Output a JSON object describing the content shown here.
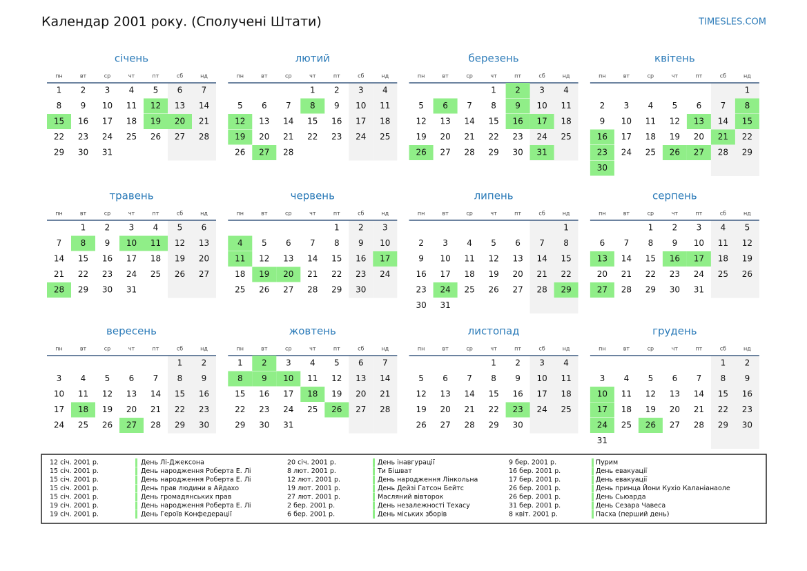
{
  "header": {
    "title": "Календар 2001 року. (Сполучені Штати)",
    "site": "TIMESLES.COM"
  },
  "weekdays": [
    "пн",
    "вт",
    "ср",
    "чт",
    "пт",
    "сб",
    "нд"
  ],
  "highlight_color": "#90ee88",
  "months": [
    {
      "name": "січень",
      "weeks": [
        [
          1,
          2,
          3,
          4,
          5,
          6,
          7
        ],
        [
          8,
          9,
          10,
          11,
          12,
          13,
          14
        ],
        [
          15,
          16,
          17,
          18,
          19,
          20,
          21
        ],
        [
          22,
          23,
          24,
          25,
          26,
          27,
          28
        ],
        [
          29,
          30,
          31
        ]
      ],
      "highlight": [
        12,
        15,
        19,
        20
      ]
    },
    {
      "name": "лютий",
      "weeks": [
        [
          null,
          null,
          null,
          1,
          2,
          3,
          4
        ],
        [
          5,
          6,
          7,
          8,
          9,
          10,
          11
        ],
        [
          12,
          13,
          14,
          15,
          16,
          17,
          18
        ],
        [
          19,
          20,
          21,
          22,
          23,
          24,
          25
        ],
        [
          26,
          27,
          28
        ]
      ],
      "highlight": [
        8,
        12,
        19,
        27
      ]
    },
    {
      "name": "березень",
      "weeks": [
        [
          null,
          null,
          null,
          1,
          2,
          3,
          4
        ],
        [
          5,
          6,
          7,
          8,
          9,
          10,
          11
        ],
        [
          12,
          13,
          14,
          15,
          16,
          17,
          18
        ],
        [
          19,
          20,
          21,
          22,
          23,
          24,
          25
        ],
        [
          26,
          27,
          28,
          29,
          30,
          31
        ]
      ],
      "highlight": [
        2,
        6,
        9,
        16,
        17,
        26,
        31
      ]
    },
    {
      "name": "квітень",
      "weeks": [
        [
          null,
          null,
          null,
          null,
          null,
          null,
          1
        ],
        [
          2,
          3,
          4,
          5,
          6,
          7,
          8
        ],
        [
          9,
          10,
          11,
          12,
          13,
          14,
          15
        ],
        [
          16,
          17,
          18,
          19,
          20,
          21,
          22
        ],
        [
          23,
          24,
          25,
          26,
          27,
          28,
          29
        ],
        [
          30
        ]
      ],
      "highlight": [
        8,
        13,
        15,
        16,
        21,
        23,
        26,
        27,
        30
      ]
    },
    {
      "name": "травень",
      "weeks": [
        [
          null,
          1,
          2,
          3,
          4,
          5,
          6
        ],
        [
          7,
          8,
          9,
          10,
          11,
          12,
          13
        ],
        [
          14,
          15,
          16,
          17,
          18,
          19,
          20
        ],
        [
          21,
          22,
          23,
          24,
          25,
          26,
          27
        ],
        [
          28,
          29,
          30,
          31
        ]
      ],
      "highlight": [
        8,
        10,
        11,
        28
      ]
    },
    {
      "name": "червень",
      "weeks": [
        [
          null,
          null,
          null,
          null,
          1,
          2,
          3
        ],
        [
          4,
          5,
          6,
          7,
          8,
          9,
          10
        ],
        [
          11,
          12,
          13,
          14,
          15,
          16,
          17
        ],
        [
          18,
          19,
          20,
          21,
          22,
          23,
          24
        ],
        [
          25,
          26,
          27,
          28,
          29,
          30
        ]
      ],
      "highlight": [
        4,
        11,
        17,
        19,
        20
      ]
    },
    {
      "name": "липень",
      "weeks": [
        [
          null,
          null,
          null,
          null,
          null,
          null,
          1
        ],
        [
          2,
          3,
          4,
          5,
          6,
          7,
          8
        ],
        [
          9,
          10,
          11,
          12,
          13,
          14,
          15
        ],
        [
          16,
          17,
          18,
          19,
          20,
          21,
          22
        ],
        [
          23,
          24,
          25,
          26,
          27,
          28,
          29
        ],
        [
          30,
          31
        ]
      ],
      "highlight": [
        24,
        29
      ]
    },
    {
      "name": "серпень",
      "weeks": [
        [
          null,
          null,
          1,
          2,
          3,
          4,
          5
        ],
        [
          6,
          7,
          8,
          9,
          10,
          11,
          12
        ],
        [
          13,
          14,
          15,
          16,
          17,
          18,
          19
        ],
        [
          20,
          21,
          22,
          23,
          24,
          25,
          26
        ],
        [
          27,
          28,
          29,
          30,
          31
        ]
      ],
      "highlight": [
        13,
        16,
        17,
        27
      ]
    },
    {
      "name": "вересень",
      "weeks": [
        [
          null,
          null,
          null,
          null,
          null,
          1,
          2
        ],
        [
          3,
          4,
          5,
          6,
          7,
          8,
          9
        ],
        [
          10,
          11,
          12,
          13,
          14,
          15,
          16
        ],
        [
          17,
          18,
          19,
          20,
          21,
          22,
          23
        ],
        [
          24,
          25,
          26,
          27,
          28,
          29,
          30
        ]
      ],
      "highlight": [
        18,
        27
      ]
    },
    {
      "name": "жовтень",
      "weeks": [
        [
          1,
          2,
          3,
          4,
          5,
          6,
          7
        ],
        [
          8,
          9,
          10,
          11,
          12,
          13,
          14
        ],
        [
          15,
          16,
          17,
          18,
          19,
          20,
          21
        ],
        [
          22,
          23,
          24,
          25,
          26,
          27,
          28
        ],
        [
          29,
          30,
          31
        ]
      ],
      "highlight": [
        2,
        8,
        9,
        10,
        18,
        26
      ]
    },
    {
      "name": "листопад",
      "weeks": [
        [
          null,
          null,
          null,
          1,
          2,
          3,
          4
        ],
        [
          5,
          6,
          7,
          8,
          9,
          10,
          11
        ],
        [
          12,
          13,
          14,
          15,
          16,
          17,
          18
        ],
        [
          19,
          20,
          21,
          22,
          23,
          24,
          25
        ],
        [
          26,
          27,
          28,
          29,
          30
        ]
      ],
      "highlight": [
        23
      ]
    },
    {
      "name": "грудень",
      "weeks": [
        [
          null,
          null,
          null,
          null,
          null,
          1,
          2
        ],
        [
          3,
          4,
          5,
          6,
          7,
          8,
          9
        ],
        [
          10,
          11,
          12,
          13,
          14,
          15,
          16
        ],
        [
          17,
          18,
          19,
          20,
          21,
          22,
          23
        ],
        [
          24,
          25,
          26,
          27,
          28,
          29,
          30
        ],
        [
          31
        ]
      ],
      "highlight": [
        10,
        17,
        24,
        26
      ]
    }
  ],
  "holidays": [
    {
      "date": "12 січ. 2001 р.",
      "name": "День Лі-Джексона"
    },
    {
      "date": "15 січ. 2001 р.",
      "name": "День народження Роберта Е. Лі"
    },
    {
      "date": "15 січ. 2001 р.",
      "name": "День народження Роберта Е. Лі"
    },
    {
      "date": "15 січ. 2001 р.",
      "name": "День прав людини в Айдахо"
    },
    {
      "date": "15 січ. 2001 р.",
      "name": "День громадянських прав"
    },
    {
      "date": "19 січ. 2001 р.",
      "name": "День народження Роберта Е. Лі"
    },
    {
      "date": "19 січ. 2001 р.",
      "name": "День Героїв Конфедерації"
    },
    {
      "date": "20 січ. 2001 р.",
      "name": "День інавгурації"
    },
    {
      "date": "8 лют. 2001 р.",
      "name": "Ти Бішват"
    },
    {
      "date": "12 лют. 2001 р.",
      "name": "День народження Лінкольна"
    },
    {
      "date": "19 лют. 2001 р.",
      "name": "День Дейзі Гатсон Бейтс"
    },
    {
      "date": "27 лют. 2001 р.",
      "name": "Масляний вівторок"
    },
    {
      "date": "2 бер. 2001 р.",
      "name": "День незалежності Техасу"
    },
    {
      "date": "6 бер. 2001 р.",
      "name": "День міських зборів"
    },
    {
      "date": "9 бер. 2001 р.",
      "name": "Пурим"
    },
    {
      "date": "16 бер. 2001 р.",
      "name": "День евакуації"
    },
    {
      "date": "17 бер. 2001 р.",
      "name": "День евакуації"
    },
    {
      "date": "26 бер. 2001 р.",
      "name": "День принца Йони Кухіо Каланіанаоле"
    },
    {
      "date": "26 бер. 2001 р.",
      "name": "День Сьюарда"
    },
    {
      "date": "31 бер. 2001 р.",
      "name": "День Сезара Чавеса"
    },
    {
      "date": "8 квіт. 2001 р.",
      "name": "Пасха (перший день)"
    }
  ]
}
